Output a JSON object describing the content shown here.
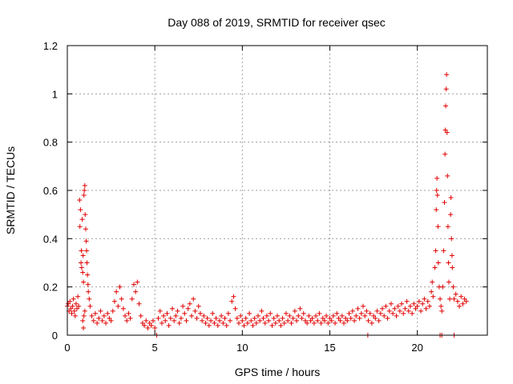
{
  "chart_data": {
    "type": "scatter",
    "title": "Day 088 of 2019, SRMTID for receiver qsec",
    "xlabel": "GPS time / hours",
    "ylabel": "SRMTID / TECUs",
    "xlim": [
      0,
      24
    ],
    "ylim": [
      0,
      1.2
    ],
    "xticks": [
      0,
      5,
      10,
      15,
      20
    ],
    "xtick_labels": [
      "0",
      "5",
      "10",
      "15",
      "20"
    ],
    "yticks": [
      0,
      0.2,
      0.4,
      0.6,
      0.8,
      1.0,
      1.2
    ],
    "ytick_labels": [
      "0",
      "0.2",
      "0.4",
      "0.6",
      "0.8",
      "1",
      "1.2"
    ],
    "grid": true,
    "marker": "+",
    "color": "#e00000",
    "series": [
      {
        "name": "SRMTID",
        "points": [
          [
            0.0,
            0.12
          ],
          [
            0.05,
            0.13
          ],
          [
            0.1,
            0.1
          ],
          [
            0.15,
            0.14
          ],
          [
            0.2,
            0.11
          ],
          [
            0.25,
            0.09
          ],
          [
            0.3,
            0.12
          ],
          [
            0.35,
            0.15
          ],
          [
            0.4,
            0.1
          ],
          [
            0.45,
            0.08
          ],
          [
            0.5,
            0.13
          ],
          [
            0.55,
            0.11
          ],
          [
            0.6,
            0.16
          ],
          [
            0.65,
            0.12
          ],
          [
            0.7,
            0.56
          ],
          [
            0.72,
            0.45
          ],
          [
            0.75,
            0.52
          ],
          [
            0.78,
            0.3
          ],
          [
            0.8,
            0.35
          ],
          [
            0.82,
            0.28
          ],
          [
            0.85,
            0.48
          ],
          [
            0.88,
            0.26
          ],
          [
            0.9,
            0.33
          ],
          [
            0.92,
            0.22
          ],
          [
            0.95,
            0.58
          ],
          [
            0.97,
            0.6
          ],
          [
            1.0,
            0.62
          ],
          [
            1.02,
            0.5
          ],
          [
            1.05,
            0.44
          ],
          [
            1.08,
            0.39
          ],
          [
            1.1,
            0.35
          ],
          [
            1.12,
            0.3
          ],
          [
            1.15,
            0.25
          ],
          [
            1.18,
            0.21
          ],
          [
            1.2,
            0.18
          ],
          [
            1.25,
            0.15
          ],
          [
            1.3,
            0.12
          ],
          [
            0.88,
            0.06
          ],
          [
            0.92,
            0.03
          ],
          [
            1.0,
            0.1
          ],
          [
            0.95,
            0.08
          ],
          [
            1.4,
            0.08
          ],
          [
            1.5,
            0.06
          ],
          [
            1.6,
            0.09
          ],
          [
            1.7,
            0.05
          ],
          [
            1.8,
            0.07
          ],
          [
            1.9,
            0.1
          ],
          [
            2.0,
            0.06
          ],
          [
            2.1,
            0.08
          ],
          [
            2.2,
            0.05
          ],
          [
            2.3,
            0.09
          ],
          [
            2.4,
            0.07
          ],
          [
            2.5,
            0.06
          ],
          [
            2.6,
            0.1
          ],
          [
            2.7,
            0.14
          ],
          [
            2.8,
            0.18
          ],
          [
            2.9,
            0.12
          ],
          [
            3.0,
            0.2
          ],
          [
            3.1,
            0.15
          ],
          [
            3.2,
            0.11
          ],
          [
            3.3,
            0.08
          ],
          [
            3.4,
            0.06
          ],
          [
            3.5,
            0.09
          ],
          [
            3.6,
            0.07
          ],
          [
            3.7,
            0.15
          ],
          [
            3.8,
            0.21
          ],
          [
            3.9,
            0.18
          ],
          [
            4.0,
            0.22
          ],
          [
            4.1,
            0.13
          ],
          [
            4.2,
            0.08
          ],
          [
            4.3,
            0.05
          ],
          [
            4.4,
            0.04
          ],
          [
            4.5,
            0.06
          ],
          [
            4.6,
            0.03
          ],
          [
            4.7,
            0.05
          ],
          [
            4.8,
            0.04
          ],
          [
            4.9,
            0.06
          ],
          [
            5.0,
            0.03
          ],
          [
            5.1,
            0.0
          ],
          [
            5.2,
            0.07
          ],
          [
            5.3,
            0.1
          ],
          [
            5.4,
            0.05
          ],
          [
            5.5,
            0.08
          ],
          [
            5.6,
            0.06
          ],
          [
            5.7,
            0.09
          ],
          [
            5.8,
            0.04
          ],
          [
            5.9,
            0.07
          ],
          [
            6.0,
            0.11
          ],
          [
            6.1,
            0.06
          ],
          [
            6.2,
            0.08
          ],
          [
            6.3,
            0.1
          ],
          [
            6.4,
            0.05
          ],
          [
            6.5,
            0.07
          ],
          [
            6.6,
            0.12
          ],
          [
            6.7,
            0.09
          ],
          [
            6.8,
            0.06
          ],
          [
            6.9,
            0.11
          ],
          [
            7.0,
            0.13
          ],
          [
            7.1,
            0.08
          ],
          [
            7.2,
            0.15
          ],
          [
            7.3,
            0.1
          ],
          [
            7.4,
            0.07
          ],
          [
            7.5,
            0.12
          ],
          [
            7.6,
            0.09
          ],
          [
            7.7,
            0.06
          ],
          [
            7.8,
            0.08
          ],
          [
            7.9,
            0.05
          ],
          [
            8.0,
            0.07
          ],
          [
            8.1,
            0.04
          ],
          [
            8.2,
            0.06
          ],
          [
            8.3,
            0.09
          ],
          [
            8.4,
            0.05
          ],
          [
            8.5,
            0.07
          ],
          [
            8.6,
            0.04
          ],
          [
            8.7,
            0.06
          ],
          [
            8.8,
            0.08
          ],
          [
            8.9,
            0.05
          ],
          [
            9.0,
            0.07
          ],
          [
            9.1,
            0.04
          ],
          [
            9.2,
            0.09
          ],
          [
            9.3,
            0.06
          ],
          [
            9.4,
            0.14
          ],
          [
            9.5,
            0.16
          ],
          [
            9.6,
            0.11
          ],
          [
            9.7,
            0.07
          ],
          [
            9.8,
            0.05
          ],
          [
            9.9,
            0.08
          ],
          [
            10.0,
            0.06
          ],
          [
            10.1,
            0.04
          ],
          [
            10.2,
            0.07
          ],
          [
            10.3,
            0.05
          ],
          [
            10.4,
            0.09
          ],
          [
            10.5,
            0.06
          ],
          [
            10.6,
            0.04
          ],
          [
            10.7,
            0.07
          ],
          [
            10.8,
            0.05
          ],
          [
            10.9,
            0.08
          ],
          [
            11.0,
            0.06
          ],
          [
            11.1,
            0.1
          ],
          [
            11.2,
            0.07
          ],
          [
            11.3,
            0.05
          ],
          [
            11.4,
            0.08
          ],
          [
            11.5,
            0.06
          ],
          [
            11.6,
            0.09
          ],
          [
            11.7,
            0.04
          ],
          [
            11.8,
            0.07
          ],
          [
            11.9,
            0.05
          ],
          [
            12.0,
            0.08
          ],
          [
            12.1,
            0.06
          ],
          [
            12.2,
            0.04
          ],
          [
            12.3,
            0.07
          ],
          [
            12.4,
            0.05
          ],
          [
            12.5,
            0.09
          ],
          [
            12.6,
            0.06
          ],
          [
            12.7,
            0.08
          ],
          [
            12.8,
            0.05
          ],
          [
            12.9,
            0.07
          ],
          [
            13.0,
            0.1
          ],
          [
            13.1,
            0.06
          ],
          [
            13.2,
            0.08
          ],
          [
            13.3,
            0.11
          ],
          [
            13.4,
            0.07
          ],
          [
            13.5,
            0.09
          ],
          [
            13.6,
            0.06
          ],
          [
            13.7,
            0.05
          ],
          [
            13.8,
            0.08
          ],
          [
            13.9,
            0.06
          ],
          [
            14.0,
            0.07
          ],
          [
            14.1,
            0.05
          ],
          [
            14.2,
            0.08
          ],
          [
            14.3,
            0.06
          ],
          [
            14.4,
            0.09
          ],
          [
            14.5,
            0.05
          ],
          [
            14.6,
            0.07
          ],
          [
            14.7,
            0.06
          ],
          [
            14.8,
            0.08
          ],
          [
            14.9,
            0.05
          ],
          [
            15.0,
            0.07
          ],
          [
            15.1,
            0.06
          ],
          [
            15.2,
            0.08
          ],
          [
            15.3,
            0.05
          ],
          [
            15.4,
            0.09
          ],
          [
            15.5,
            0.07
          ],
          [
            15.6,
            0.06
          ],
          [
            15.7,
            0.08
          ],
          [
            15.8,
            0.05
          ],
          [
            15.9,
            0.07
          ],
          [
            16.0,
            0.06
          ],
          [
            16.1,
            0.09
          ],
          [
            16.2,
            0.07
          ],
          [
            16.3,
            0.1
          ],
          [
            16.4,
            0.06
          ],
          [
            16.5,
            0.08
          ],
          [
            16.6,
            0.11
          ],
          [
            16.7,
            0.07
          ],
          [
            16.8,
            0.09
          ],
          [
            16.9,
            0.12
          ],
          [
            17.0,
            0.08
          ],
          [
            17.1,
            0.1
          ],
          [
            17.17,
            0.0
          ],
          [
            17.2,
            0.06
          ],
          [
            17.3,
            0.09
          ],
          [
            17.4,
            0.05
          ],
          [
            17.5,
            0.08
          ],
          [
            17.6,
            0.07
          ],
          [
            17.7,
            0.1
          ],
          [
            17.8,
            0.06
          ],
          [
            17.9,
            0.09
          ],
          [
            18.0,
            0.11
          ],
          [
            18.1,
            0.08
          ],
          [
            18.2,
            0.12
          ],
          [
            18.3,
            0.07
          ],
          [
            18.4,
            0.1
          ],
          [
            18.5,
            0.13
          ],
          [
            18.6,
            0.09
          ],
          [
            18.7,
            0.11
          ],
          [
            18.8,
            0.08
          ],
          [
            18.9,
            0.12
          ],
          [
            19.0,
            0.1
          ],
          [
            19.1,
            0.13
          ],
          [
            19.2,
            0.09
          ],
          [
            19.3,
            0.11
          ],
          [
            19.4,
            0.14
          ],
          [
            19.5,
            0.1
          ],
          [
            19.6,
            0.12
          ],
          [
            19.7,
            0.09
          ],
          [
            19.8,
            0.13
          ],
          [
            19.9,
            0.11
          ],
          [
            20.0,
            0.12
          ],
          [
            20.1,
            0.14
          ],
          [
            20.2,
            0.1
          ],
          [
            20.3,
            0.13
          ],
          [
            20.4,
            0.15
          ],
          [
            20.5,
            0.11
          ],
          [
            20.6,
            0.14
          ],
          [
            20.7,
            0.12
          ],
          [
            20.8,
            0.18
          ],
          [
            20.85,
            0.22
          ],
          [
            20.9,
            0.16
          ],
          [
            21.0,
            0.28
          ],
          [
            21.05,
            0.35
          ],
          [
            21.08,
            0.52
          ],
          [
            21.1,
            0.6
          ],
          [
            21.12,
            0.65
          ],
          [
            21.15,
            0.58
          ],
          [
            21.18,
            0.45
          ],
          [
            21.2,
            0.3
          ],
          [
            21.25,
            0.2
          ],
          [
            21.3,
            0.15
          ],
          [
            21.35,
            0.12
          ],
          [
            21.4,
            0.1
          ],
          [
            21.45,
            0.2
          ],
          [
            21.5,
            0.35
          ],
          [
            21.55,
            0.55
          ],
          [
            21.58,
            0.75
          ],
          [
            21.6,
            0.85
          ],
          [
            21.62,
            0.95
          ],
          [
            21.65,
            1.02
          ],
          [
            21.67,
            1.08
          ],
          [
            21.7,
            0.84
          ],
          [
            21.72,
            0.66
          ],
          [
            21.75,
            0.45
          ],
          [
            21.78,
            0.3
          ],
          [
            21.8,
            0.22
          ],
          [
            21.85,
            0.15
          ],
          [
            21.9,
            0.5
          ],
          [
            21.92,
            0.57
          ],
          [
            21.95,
            0.4
          ],
          [
            21.98,
            0.33
          ],
          [
            22.0,
            0.28
          ],
          [
            22.05,
            0.2
          ],
          [
            22.1,
            0.15
          ],
          [
            21.3,
            0.0
          ],
          [
            21.4,
            0.0
          ],
          [
            22.1,
            0.0
          ],
          [
            22.2,
            0.17
          ],
          [
            22.3,
            0.14
          ],
          [
            22.4,
            0.12
          ],
          [
            22.5,
            0.16
          ],
          [
            22.6,
            0.13
          ],
          [
            22.7,
            0.15
          ],
          [
            22.8,
            0.14
          ]
        ]
      }
    ]
  }
}
